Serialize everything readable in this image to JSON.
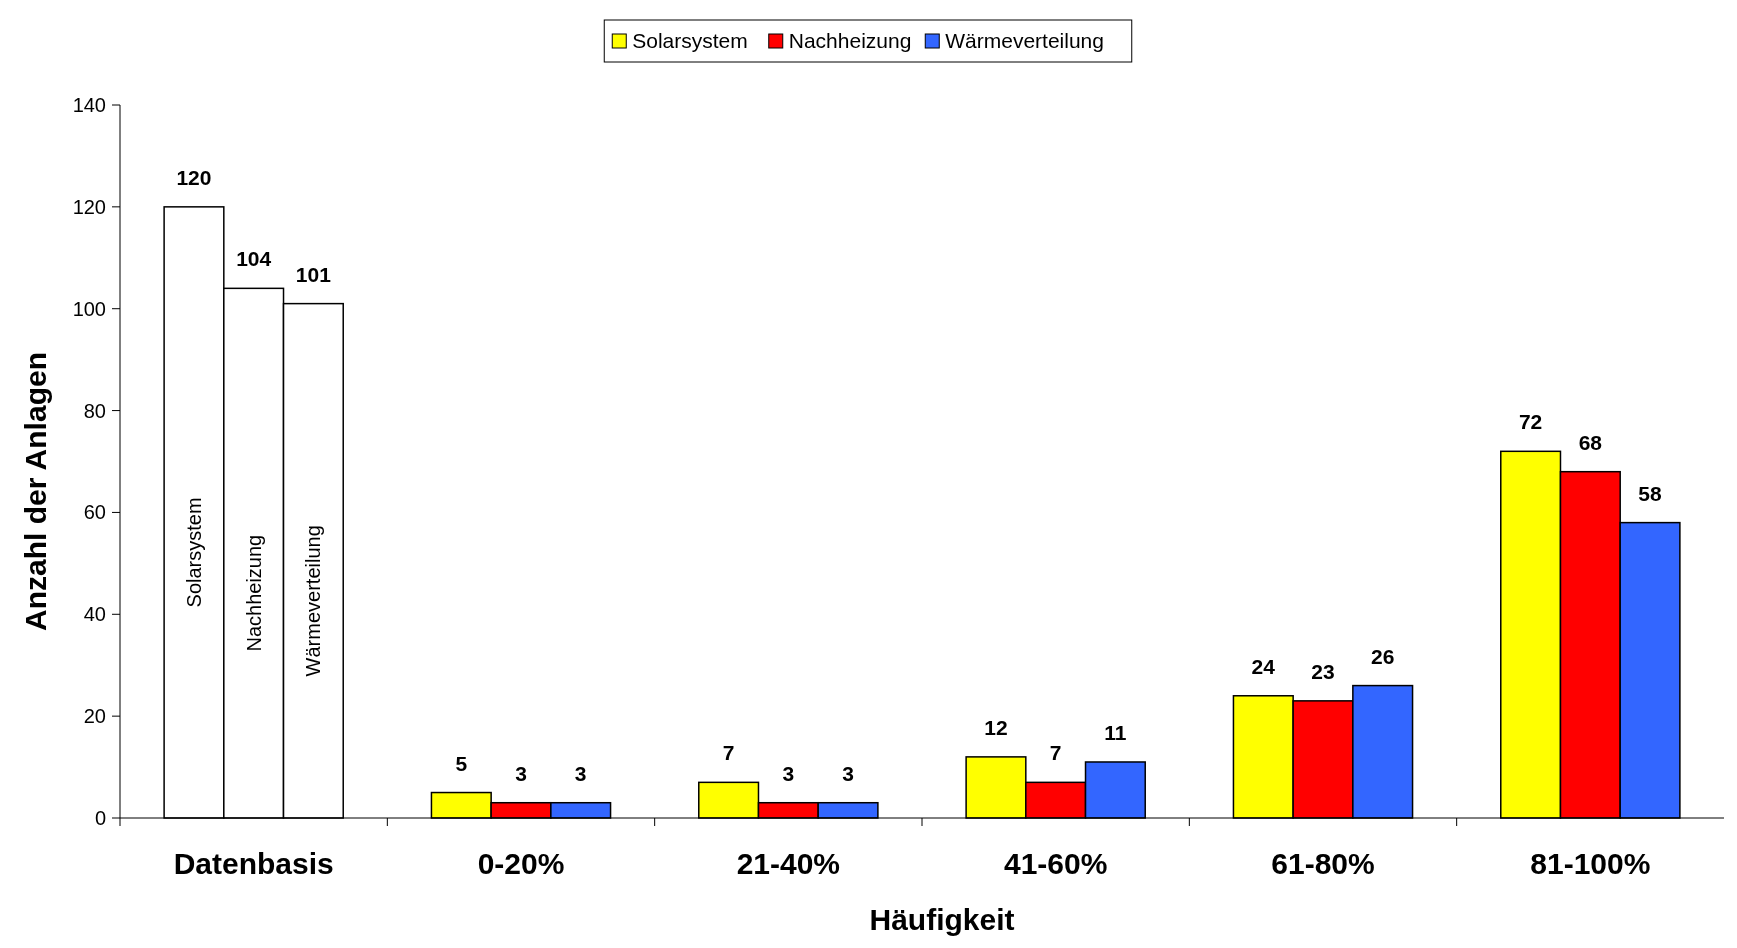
{
  "chart_data": {
    "type": "bar",
    "xlabel": "Häufigkeit",
    "ylabel": "Anzahl der Anlagen",
    "categories": [
      "Datenbasis",
      "0-20%",
      "21-40%",
      "41-60%",
      "61-80%",
      "81-100%"
    ],
    "series": [
      {
        "name": "Solarsystem",
        "color": "#ffff00",
        "colors": [
          "#ffffff",
          "#ffff00",
          "#ffff00",
          "#ffff00",
          "#ffff00",
          "#ffff00"
        ],
        "values": [
          120,
          5,
          7,
          12,
          24,
          72
        ]
      },
      {
        "name": "Nachheizung",
        "color": "#ff0000",
        "colors": [
          "#ffffff",
          "#ff0000",
          "#ff0000",
          "#ff0000",
          "#ff0000",
          "#ff0000"
        ],
        "values": [
          104,
          3,
          3,
          7,
          23,
          68
        ]
      },
      {
        "name": "Wärmeverteilung",
        "color": "#3366ff",
        "colors": [
          "#ffffff",
          "#3366ff",
          "#3366ff",
          "#3366ff",
          "#3366ff",
          "#3366ff"
        ],
        "values": [
          101,
          3,
          3,
          11,
          26,
          58
        ]
      }
    ],
    "ylim": [
      0,
      140
    ],
    "yticks": [
      0,
      20,
      40,
      60,
      80,
      100,
      120,
      140
    ],
    "data_labels": true,
    "legend": "top",
    "grid": false
  }
}
